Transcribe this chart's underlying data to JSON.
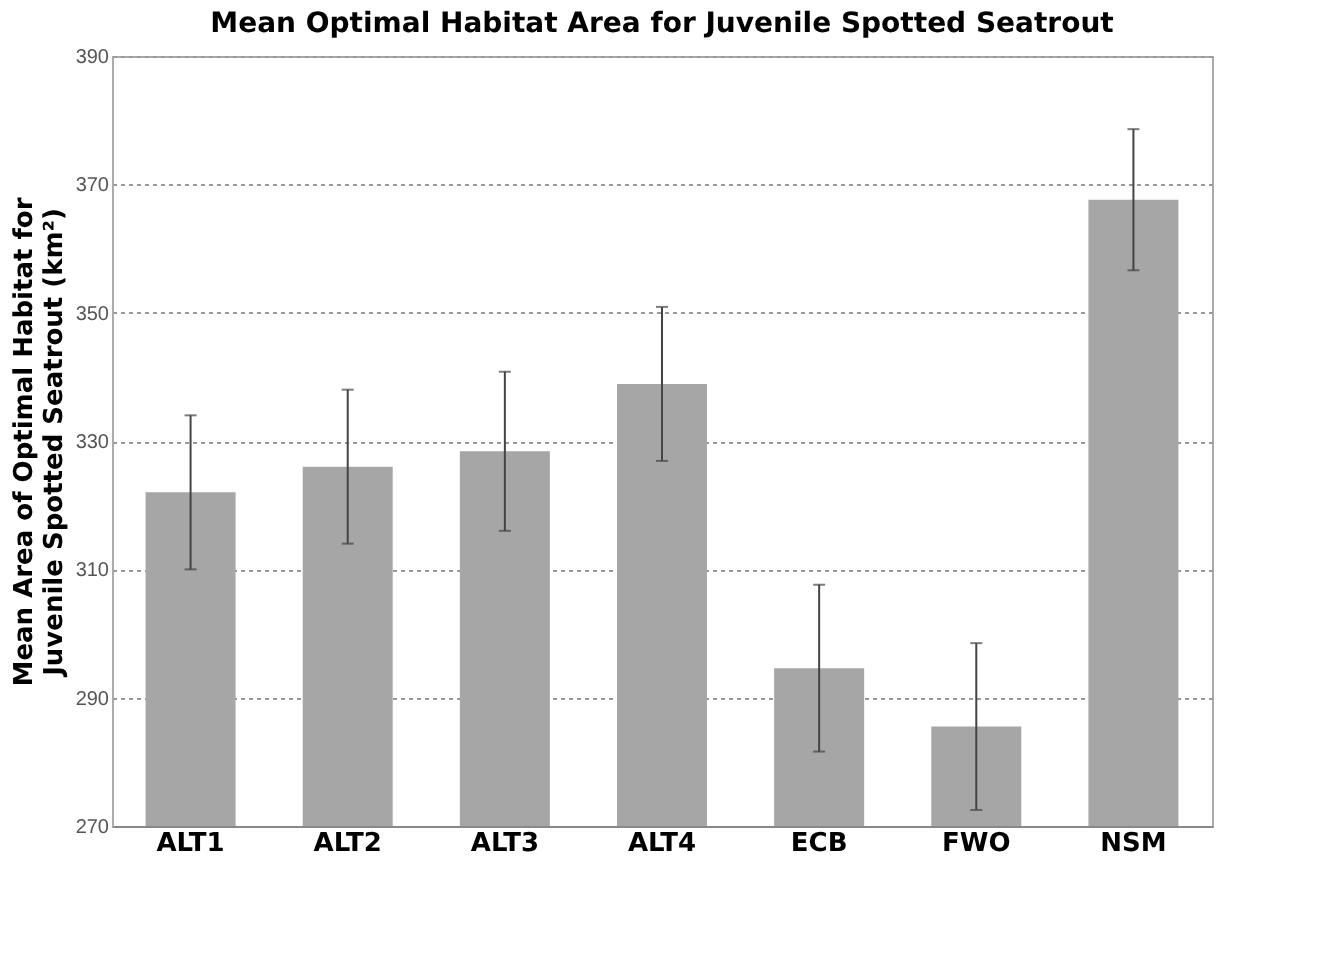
{
  "chart_data": {
    "type": "bar",
    "title": "Mean Optimal Habitat Area for Juvenile Spotted Seatrout",
    "ylabel": "Mean Area of Optimal Habitat for Juvenile Spotted Seatrout (km²)",
    "categories": [
      "ALT1",
      "ALT2",
      "ALT3",
      "ALT4",
      "ECB",
      "FWO",
      "NSM"
    ],
    "values": [
      322,
      326,
      328.4,
      338.9,
      294.6,
      285.5,
      367.6
    ],
    "errors": [
      12,
      12,
      12.4,
      12,
      13,
      13,
      11
    ],
    "color": "#a6a6a6",
    "ylim": [
      270,
      390
    ],
    "yticks": [
      270,
      290,
      310,
      330,
      350,
      370,
      390
    ],
    "grid": "y"
  }
}
